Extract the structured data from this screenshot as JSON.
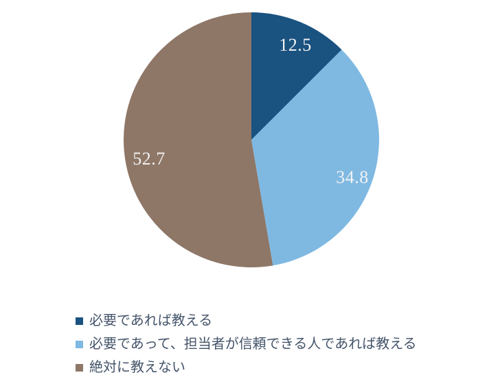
{
  "chart_data": {
    "type": "pie",
    "unit": "percent",
    "start_angle_deg": 0,
    "direction": "clockwise",
    "slices": [
      {
        "label": "必要であれば教える",
        "value": 12.5,
        "color": "#1A5280"
      },
      {
        "label": "必要であって、担当者が信頼できる人であれば教える",
        "value": 34.8,
        "color": "#7FB9E2"
      },
      {
        "label": "絶対に教えない",
        "value": 52.7,
        "color": "#8E7767"
      }
    ],
    "data_label_color": "#F2F2F2",
    "legend_position": "bottom-left",
    "legend_text_color": "#44546A",
    "background": "#FFFFFF"
  }
}
